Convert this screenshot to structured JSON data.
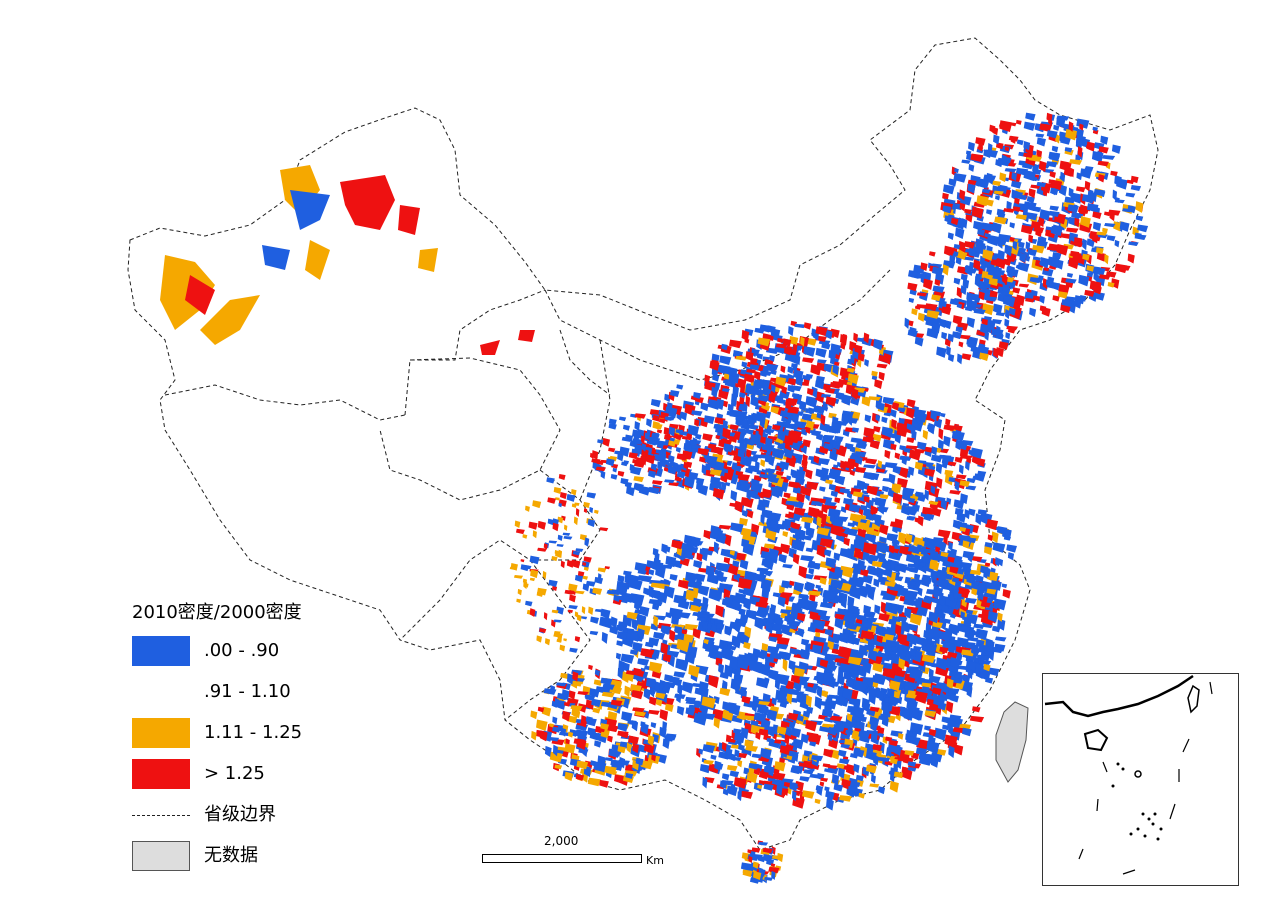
{
  "legend": {
    "title": "2010密度/2000密度",
    "items": [
      {
        "label": ".00 - .90",
        "color": "#1f5fe0",
        "kind": "fill"
      },
      {
        "label": ".91 - 1.10",
        "color": "#ffffff",
        "kind": "empty"
      },
      {
        "label": "1.11 - 1.25",
        "color": "#f5a800",
        "kind": "fill"
      },
      {
        "label": "> 1.25",
        "color": "#ee1111",
        "kind": "fill"
      },
      {
        "label": "省级边界",
        "color": "#222222",
        "kind": "line"
      },
      {
        "label": "无数据",
        "color": "#dddddd",
        "kind": "nodata"
      }
    ]
  },
  "scale_bar": {
    "value": "2,000",
    "unit": "Km"
  },
  "colors": {
    "decrease": "#1f5fe0",
    "growth": "#f5a800",
    "high_growth": "#ee1111",
    "no_data": "#dddddd",
    "boundary": "#222222"
  }
}
